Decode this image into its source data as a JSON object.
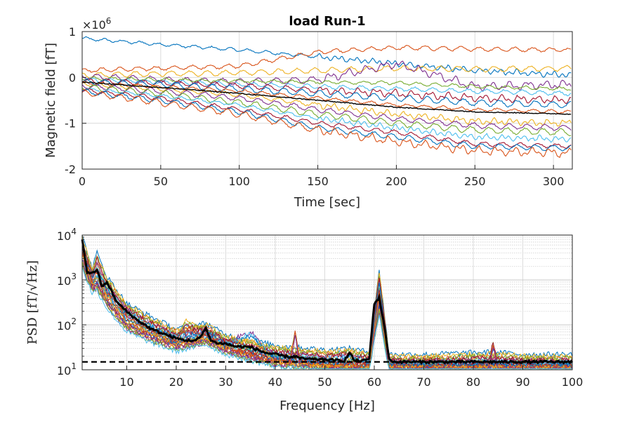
{
  "chart_data": [
    {
      "type": "line",
      "title": "load Run-1",
      "xlabel": "Time [sec]",
      "ylabel": "Magnetic field [fT]",
      "exponent_label": "×10",
      "exponent_power": "6",
      "xlim": [
        0,
        312
      ],
      "ylim": [
        -2,
        1
      ],
      "x_ticks": [
        0,
        50,
        100,
        150,
        200,
        250,
        300
      ],
      "y_ticks": [
        -2,
        -1,
        0,
        1
      ],
      "grid": true,
      "colors": [
        "#0072BD",
        "#D95319",
        "#EDB120",
        "#7E2F8E",
        "#77AC30",
        "#4DBEEE",
        "#A2142F"
      ],
      "mean_color": "#000000",
      "mean_series": {
        "name": "mean",
        "x": [
          0,
          50,
          100,
          150,
          200,
          250,
          312
        ],
        "y": [
          -0.1,
          -0.22,
          -0.35,
          -0.5,
          -0.65,
          -0.75,
          -0.8
        ]
      },
      "series": [
        {
          "x": [
            0,
            50,
            100,
            150,
            200,
            250,
            312
          ],
          "y": [
            0.85,
            0.72,
            0.6,
            0.45,
            0.3,
            0.15,
            0.05
          ]
        },
        {
          "x": [
            0,
            50,
            100,
            150,
            200,
            250,
            312
          ],
          "y": [
            0.15,
            0.2,
            0.25,
            0.55,
            0.65,
            0.62,
            0.6
          ]
        },
        {
          "x": [
            0,
            50,
            100,
            150,
            200,
            250,
            312
          ],
          "y": [
            0.05,
            0.08,
            0.1,
            0.15,
            0.2,
            0.18,
            0.2
          ]
        },
        {
          "x": [
            0,
            50,
            100,
            150,
            200,
            250,
            312
          ],
          "y": [
            0.02,
            -0.05,
            -0.1,
            -0.05,
            0.3,
            -0.2,
            -0.15
          ]
        },
        {
          "x": [
            0,
            50,
            100,
            150,
            200,
            250,
            312
          ],
          "y": [
            -0.02,
            -0.05,
            -0.08,
            -0.1,
            -0.12,
            -0.2,
            -0.25
          ]
        },
        {
          "x": [
            0,
            50,
            100,
            150,
            200,
            250,
            312
          ],
          "y": [
            -0.05,
            -0.1,
            -0.15,
            -0.2,
            -0.25,
            -0.3,
            -0.35
          ]
        },
        {
          "x": [
            0,
            50,
            100,
            150,
            200,
            250,
            312
          ],
          "y": [
            -0.08,
            -0.12,
            -0.18,
            -0.28,
            -0.35,
            -0.45,
            -0.5
          ]
        },
        {
          "x": [
            0,
            50,
            100,
            150,
            200,
            250,
            312
          ],
          "y": [
            -0.1,
            -0.15,
            -0.25,
            -0.35,
            -0.45,
            -0.55,
            -0.6
          ]
        },
        {
          "x": [
            0,
            50,
            100,
            150,
            200,
            250,
            312
          ],
          "y": [
            -0.12,
            -0.2,
            -0.3,
            -0.45,
            -0.6,
            -0.7,
            -0.75
          ]
        },
        {
          "x": [
            0,
            50,
            100,
            150,
            200,
            250,
            312
          ],
          "y": [
            -0.15,
            -0.25,
            -0.38,
            -0.6,
            -0.8,
            -0.95,
            -1.0
          ]
        },
        {
          "x": [
            0,
            50,
            100,
            150,
            200,
            250,
            312
          ],
          "y": [
            -0.18,
            -0.3,
            -0.45,
            -0.7,
            -0.9,
            -1.05,
            -1.1
          ]
        },
        {
          "x": [
            0,
            50,
            100,
            150,
            200,
            250,
            312
          ],
          "y": [
            -0.2,
            -0.35,
            -0.55,
            -0.8,
            -1.0,
            -1.15,
            -1.2
          ]
        },
        {
          "x": [
            0,
            50,
            100,
            150,
            200,
            250,
            312
          ],
          "y": [
            -0.25,
            -0.4,
            -0.6,
            -0.9,
            -1.1,
            -1.3,
            -1.35
          ]
        },
        {
          "x": [
            0,
            50,
            100,
            150,
            200,
            250,
            312
          ],
          "y": [
            -0.28,
            -0.45,
            -0.7,
            -1.0,
            -1.2,
            -1.45,
            -1.5
          ]
        },
        {
          "x": [
            0,
            50,
            100,
            150,
            200,
            250,
            312
          ],
          "y": [
            -0.3,
            -0.5,
            -0.75,
            -1.1,
            -1.3,
            -1.5,
            -1.55
          ]
        },
        {
          "x": [
            0,
            50,
            100,
            150,
            200,
            250,
            312
          ],
          "y": [
            -0.32,
            -0.55,
            -0.8,
            -1.15,
            -1.4,
            -1.6,
            -1.65
          ]
        }
      ]
    },
    {
      "type": "line",
      "title": "",
      "xlabel": "Frequency [Hz]",
      "ylabel": "PSD [fT/√Hz]",
      "yscale": "log",
      "xlim": [
        1,
        100
      ],
      "ylim": [
        10,
        10000
      ],
      "x_ticks": [
        10,
        20,
        30,
        40,
        50,
        60,
        70,
        80,
        90,
        100
      ],
      "y_ticks": [
        10,
        100,
        1000,
        10000
      ],
      "y_tick_bases": [
        "10",
        "10",
        "10",
        "10"
      ],
      "y_tick_powers": [
        "1",
        "2",
        "3",
        "4"
      ],
      "grid": true,
      "reference_line": {
        "y": 15,
        "style": "dashed",
        "color": "#000000"
      },
      "mean_color": "#000000",
      "mean_series": {
        "name": "mean",
        "x": [
          1,
          2,
          3,
          4,
          5,
          6,
          8,
          10,
          12,
          15,
          18,
          20,
          22,
          24,
          25,
          26,
          27,
          28,
          30,
          32,
          35,
          38,
          40,
          43,
          44,
          45,
          48,
          50,
          53,
          54,
          55,
          56,
          58,
          59,
          60,
          61,
          62,
          63,
          64,
          70,
          80,
          90,
          100
        ],
        "y": [
          8000,
          1500,
          1400,
          1700,
          700,
          900,
          320,
          200,
          130,
          80,
          60,
          50,
          45,
          45,
          55,
          85,
          45,
          40,
          38,
          33,
          32,
          24,
          22,
          19,
          20,
          18,
          17,
          17,
          16,
          16,
          24,
          16,
          16,
          18,
          300,
          400,
          100,
          17,
          15,
          15,
          15,
          15,
          15
        ]
      },
      "series": [
        {
          "x": [
            1,
            3,
            4,
            6,
            10,
            15,
            20,
            26,
            30,
            40,
            50,
            55,
            59,
            61,
            62,
            63,
            70,
            84,
            90,
            100
          ],
          "y": [
            10000,
            1800,
            4000,
            1200,
            300,
            150,
            80,
            110,
            60,
            35,
            28,
            30,
            25,
            1600,
            200,
            22,
            22,
            25,
            22,
            22
          ]
        },
        {
          "x": [
            1,
            3,
            4,
            6,
            10,
            15,
            20,
            26,
            30,
            40,
            50,
            55,
            59,
            61,
            62,
            63,
            70,
            84,
            90,
            100
          ],
          "y": [
            7000,
            1500,
            2500,
            900,
            250,
            120,
            70,
            95,
            50,
            28,
            22,
            25,
            20,
            1200,
            150,
            18,
            18,
            20,
            18,
            18
          ]
        },
        {
          "x": [
            1,
            3,
            4,
            6,
            10,
            15,
            20,
            22,
            26,
            30,
            40,
            50,
            59,
            61,
            62,
            63,
            70,
            90,
            100
          ],
          "y": [
            6000,
            1300,
            2000,
            700,
            200,
            100,
            60,
            120,
            80,
            45,
            22,
            18,
            17,
            800,
            120,
            16,
            16,
            16,
            16
          ]
        },
        {
          "x": [
            1,
            3,
            4,
            6,
            10,
            15,
            20,
            26,
            30,
            35,
            40,
            50,
            59,
            61,
            62,
            63,
            70,
            90,
            100
          ],
          "y": [
            5000,
            1100,
            1500,
            600,
            160,
            85,
            50,
            70,
            40,
            70,
            20,
            16,
            15,
            500,
            90,
            15,
            15,
            15,
            15
          ]
        },
        {
          "x": [
            1,
            3,
            4,
            6,
            10,
            15,
            20,
            26,
            30,
            40,
            43,
            44,
            45,
            50,
            59,
            61,
            62,
            63,
            70,
            83,
            84,
            85,
            100
          ],
          "y": [
            4000,
            900,
            1100,
            450,
            130,
            70,
            45,
            60,
            35,
            18,
            17,
            80,
            17,
            14,
            14,
            400,
            70,
            14,
            14,
            14,
            45,
            14,
            14
          ]
        },
        {
          "x": [
            1,
            3,
            4,
            6,
            10,
            15,
            20,
            26,
            30,
            40,
            50,
            59,
            61,
            62,
            63,
            70,
            90,
            100
          ],
          "y": [
            3000,
            800,
            900,
            380,
            110,
            60,
            40,
            55,
            32,
            17,
            14,
            13,
            300,
            60,
            13,
            13,
            13,
            13
          ]
        },
        {
          "x": [
            1,
            3,
            4,
            6,
            10,
            15,
            20,
            26,
            30,
            40,
            50,
            59,
            61,
            62,
            63,
            70,
            90,
            100
          ],
          "y": [
            2500,
            700,
            800,
            320,
            95,
            55,
            35,
            50,
            30,
            16,
            13,
            13,
            250,
            50,
            13,
            13,
            13,
            13
          ]
        }
      ]
    }
  ]
}
